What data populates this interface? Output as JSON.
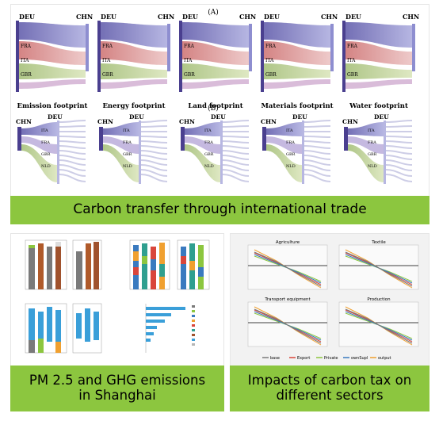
{
  "top_panel": {
    "label_a": "(A)",
    "label_b": "(B)",
    "footprints": [
      "Emission footprint",
      "Energy footprint",
      "Land footprint",
      "Materials footprint",
      "Water footprint"
    ],
    "row_a_left": "DEU",
    "row_a_right": "CHN",
    "row_b_left": "CHN",
    "row_b_right": "DEU",
    "row_a_mid_labels": [
      "FRA",
      "ITA",
      "GBR"
    ],
    "row_b_mid_labels": [
      "ITA",
      "FRA",
      "GBR",
      "NLD"
    ],
    "caption": "Carbon transfer through international trade"
  },
  "bottom_left": {
    "caption_line1": "PM 2.5 and GHG emissions",
    "caption_line2": "in Shanghai"
  },
  "bottom_right": {
    "chart_titles": [
      "Agriculture",
      "Textile",
      "Transport equipment",
      "Production"
    ],
    "legend": [
      "base",
      "Export",
      "Private",
      "ownSupl",
      "output"
    ],
    "caption_line1": "Impacts of carbon tax on",
    "caption_line2": "different sectors"
  },
  "colors": {
    "caption_bg": "#8cc63f",
    "sankey_dark": "#4a3f8f",
    "sankey_light": "#9b9bd6",
    "sankey_red": "#d98c8c",
    "sankey_green": "#b7c98a"
  }
}
